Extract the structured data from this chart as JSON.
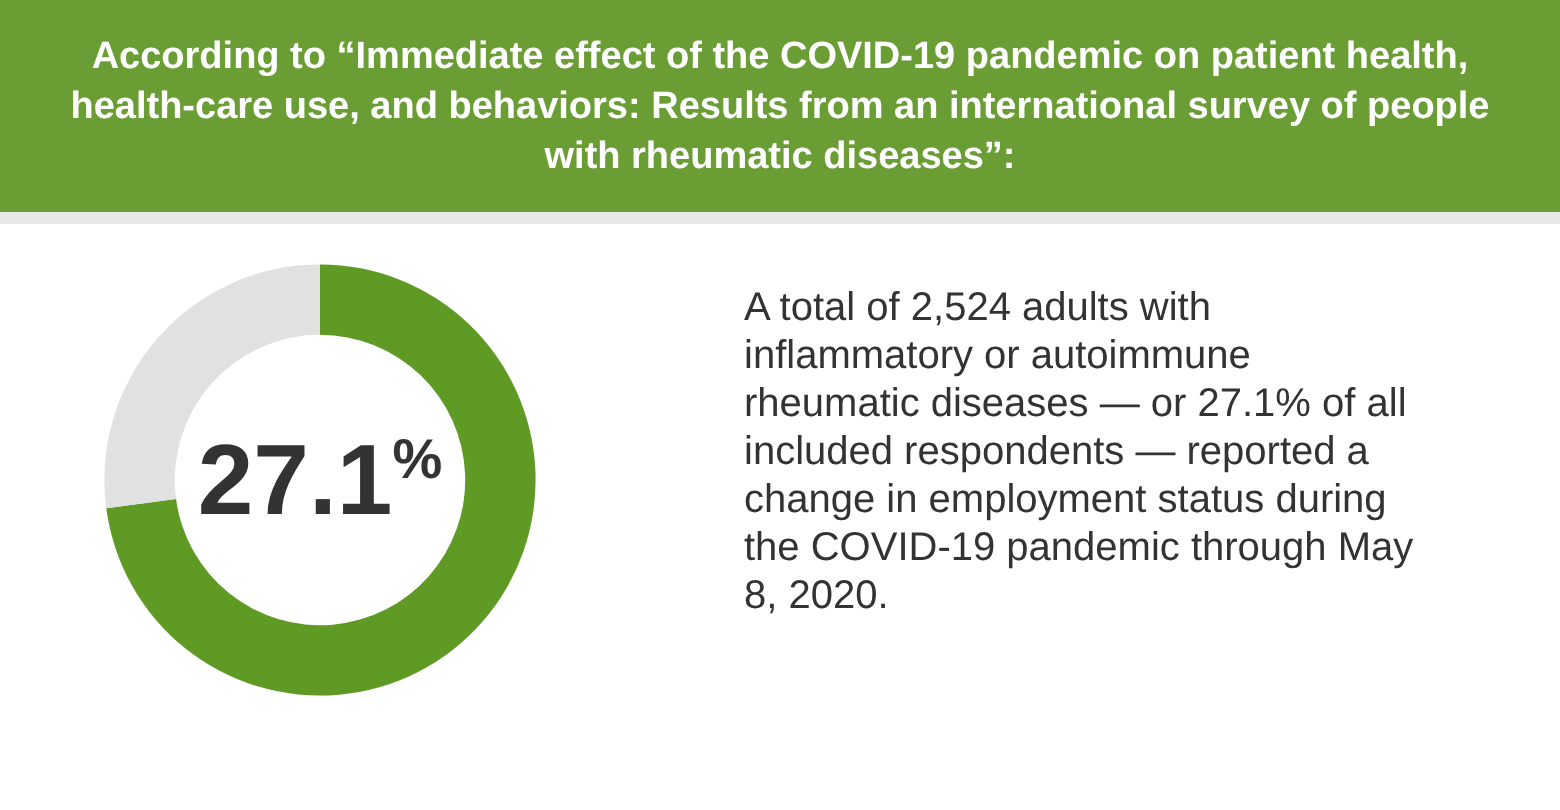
{
  "chart_data": {
    "type": "donut",
    "title": "According to “Immediate effect of the COVID-19 pandemic on patient health, health-care use, and behaviors: Results from an international survey of people with rheumatic diseases”:",
    "categories": [
      null,
      null
    ],
    "values": [
      72.9,
      27.1
    ],
    "colors": [
      "#5e9a24",
      "#e1e1e1"
    ],
    "annotations": [
      "27.1%",
      "A total of 2,524 adults with inflammatory or autoimmune rheumatic diseases — or 27.1% of all included respondents — reported a change in employment status during the COVID-19 pandemic through May 8, 2020."
    ]
  }
}
